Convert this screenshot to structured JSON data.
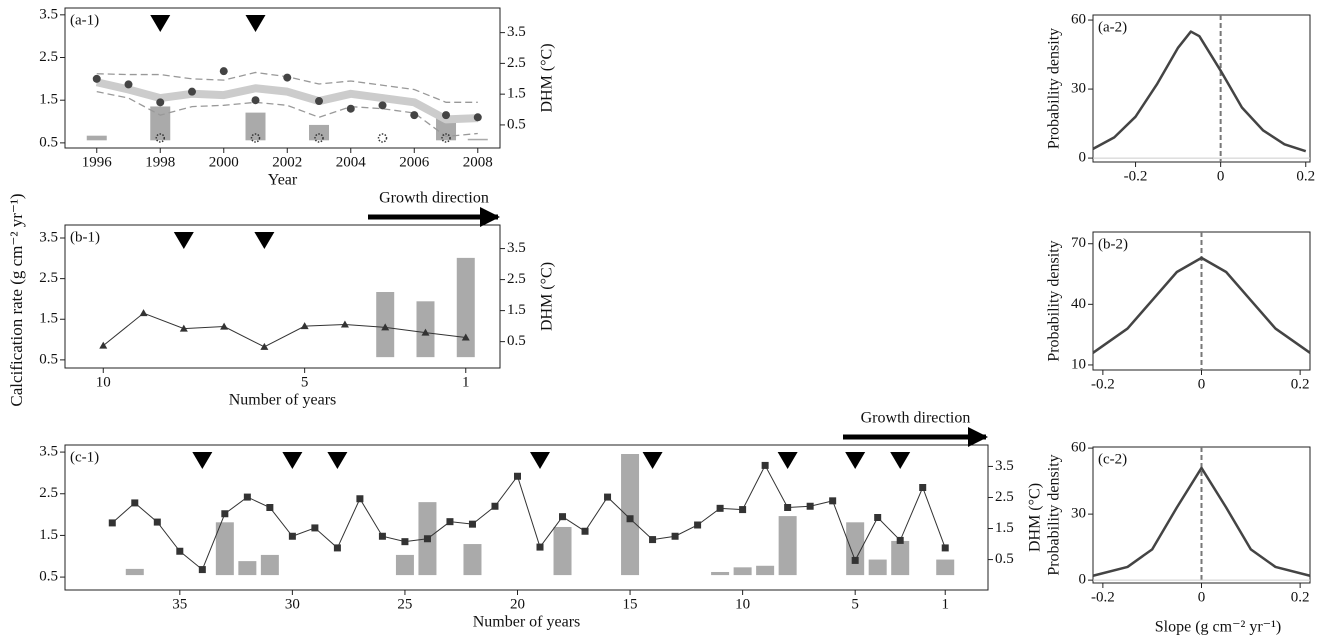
{
  "y_label": "Calcification rate (g cm⁻² yr⁻¹)",
  "x_label": "Slope (g cm⁻² yr⁻¹)",
  "chart_data": [
    {
      "type": "combo",
      "label": "(a-1)",
      "x_label": "Year",
      "y2_label": "DHM (°C)",
      "xlim": [
        1995,
        2008.7
      ],
      "xticks": [
        1996,
        1998,
        2000,
        2002,
        2004,
        2006,
        2008
      ],
      "ylim": [
        0.38,
        3.66
      ],
      "yticks": [
        0.5,
        1.5,
        2.5,
        3.5
      ],
      "y2lim": [
        -0.25,
        4.3
      ],
      "y2ticks": [
        0.5,
        1.5,
        2.5,
        3.5
      ],
      "x": [
        1996,
        1997,
        1998,
        1999,
        2000,
        2001,
        2002,
        2003,
        2004,
        2005,
        2006,
        2007,
        2008
      ],
      "series": [
        {
          "style": "thick",
          "color": "#cccccc",
          "values": [
            1.92,
            1.75,
            1.55,
            1.65,
            1.62,
            1.78,
            1.7,
            1.48,
            1.65,
            1.55,
            1.45,
            1.05,
            1.08
          ]
        },
        {
          "style": "dashed",
          "color": "#999999",
          "values": [
            2.12,
            2.1,
            2.1,
            2.0,
            1.97,
            2.15,
            2.05,
            1.88,
            1.95,
            1.85,
            1.75,
            1.45,
            1.45
          ]
        },
        {
          "style": "dashed",
          "color": "#999999",
          "values": [
            1.7,
            1.55,
            1.15,
            1.35,
            1.38,
            1.45,
            1.38,
            1.1,
            1.35,
            1.3,
            1.2,
            0.65,
            0.72
          ]
        },
        {
          "style": "dots",
          "color": "#444444",
          "values": [
            2.0,
            1.87,
            1.45,
            1.7,
            2.18,
            1.5,
            2.03,
            1.48,
            1.3,
            1.38,
            1.15,
            1.15,
            1.1
          ]
        }
      ],
      "bars": {
        "axis": "y2",
        "color": "#aaaaaa",
        "x": [
          1996,
          1998,
          2001,
          2003,
          2007,
          2008
        ],
        "values": [
          0.15,
          1.1,
          0.9,
          0.5,
          0.75,
          0.05
        ]
      },
      "triangle_x": [
        1998,
        2001
      ],
      "star_x": [
        1998,
        2001,
        2003,
        2005,
        2007
      ]
    },
    {
      "type": "combo",
      "label": "(b-1)",
      "x_label": "Number of years",
      "y2_label": "DHM (°C)",
      "annotation": "Growth direction",
      "xlim": [
        10.95,
        0.15
      ],
      "xticks": [
        10,
        5,
        1
      ],
      "ylim": [
        0.3,
        3.82
      ],
      "yticks": [
        0.5,
        1.5,
        2.5,
        3.5
      ],
      "y2lim": [
        -0.35,
        4.26
      ],
      "y2ticks": [
        0.5,
        1.5,
        2.5,
        3.5
      ],
      "x": [
        10,
        9,
        8,
        7,
        6,
        5,
        4,
        3,
        2,
        1
      ],
      "series": [
        {
          "style": "line",
          "marker": "triangle",
          "color": "#333333",
          "values": [
            0.85,
            1.65,
            1.27,
            1.32,
            0.82,
            1.33,
            1.37,
            1.3,
            1.17,
            1.05
          ]
        }
      ],
      "bars": {
        "axis": "y2",
        "color": "#aaaaaa",
        "x": [
          3,
          2,
          1
        ],
        "values": [
          2.1,
          1.8,
          3.2
        ]
      },
      "triangle_x": [
        8,
        6
      ]
    },
    {
      "type": "combo",
      "label": "(c-1)",
      "x_label": "Number of years",
      "y2_label": "DHM (°C)",
      "annotation": "Growth direction",
      "xlim": [
        40.1,
        -0.9
      ],
      "xticks": [
        35,
        30,
        25,
        20,
        15,
        10,
        5,
        1
      ],
      "ylim": [
        0.19,
        3.67
      ],
      "yticks": [
        0.5,
        1.5,
        2.5,
        3.5
      ],
      "y2lim": [
        -0.48,
        4.19
      ],
      "y2ticks": [
        0.5,
        1.5,
        2.5,
        3.5
      ],
      "x": [
        38,
        37,
        36,
        35,
        34,
        33,
        32,
        31,
        30,
        29,
        28,
        27,
        26,
        25,
        24,
        23,
        22,
        21,
        20,
        19,
        18,
        17,
        16,
        15,
        14,
        13,
        12,
        11,
        10,
        9,
        8,
        7,
        6,
        5,
        4,
        3,
        2,
        1
      ],
      "series": [
        {
          "style": "line",
          "marker": "square",
          "color": "#333333",
          "values": [
            1.8,
            2.28,
            1.82,
            1.12,
            0.68,
            2.02,
            2.42,
            2.17,
            1.48,
            1.68,
            1.2,
            2.38,
            1.48,
            1.35,
            1.42,
            1.83,
            1.77,
            2.2,
            2.92,
            1.22,
            1.95,
            1.6,
            2.42,
            1.9,
            1.4,
            1.48,
            1.75,
            2.15,
            2.12,
            3.18,
            2.17,
            2.2,
            2.33,
            0.9,
            1.93,
            1.38,
            2.65,
            1.2
          ]
        }
      ],
      "bars": {
        "axis": "y2",
        "color": "#aaaaaa",
        "x": [
          37,
          33,
          32,
          31,
          25,
          24,
          22,
          18,
          15,
          11,
          10,
          9,
          8,
          5,
          4,
          3,
          1
        ],
        "values": [
          0.2,
          1.7,
          0.45,
          0.65,
          0.65,
          2.35,
          1.0,
          1.55,
          3.9,
          0.1,
          0.25,
          0.3,
          1.9,
          1.7,
          0.5,
          1.1,
          0.5
        ]
      },
      "triangle_x": [
        34,
        30,
        28,
        19,
        14,
        8,
        5,
        3
      ]
    },
    {
      "type": "line",
      "label": "(a-2)",
      "y_label": "Probability density",
      "color": "#444444",
      "xlim": [
        -0.3,
        0.21
      ],
      "xticks": [
        -0.2,
        0,
        0.2
      ],
      "ylim": [
        -1.7,
        62.2
      ],
      "yticks": [
        0,
        30,
        60
      ],
      "ref_x": 0,
      "x": [
        -0.3,
        -0.25,
        -0.2,
        -0.15,
        -0.1,
        -0.07,
        -0.05,
        0,
        0.05,
        0.1,
        0.15,
        0.2
      ],
      "values": [
        4,
        9,
        18,
        32,
        48,
        55,
        53,
        38,
        22,
        12,
        6,
        3
      ]
    },
    {
      "type": "line",
      "label": "(b-2)",
      "y_label": "Probability density",
      "color": "#444444",
      "xlim": [
        -0.22,
        0.22
      ],
      "xticks": [
        -0.2,
        0,
        0.2
      ],
      "ylim": [
        7.5,
        75.8
      ],
      "yticks": [
        10,
        40,
        70
      ],
      "ref_x": 0,
      "x": [
        -0.22,
        -0.15,
        -0.1,
        -0.05,
        0,
        0.05,
        0.1,
        0.15,
        0.22
      ],
      "values": [
        16,
        28,
        42,
        56,
        63,
        56,
        42,
        28,
        16
      ]
    },
    {
      "type": "line",
      "label": "(c-2)",
      "y_label": "Probability density",
      "color": "#444444",
      "xlim": [
        -0.22,
        0.22
      ],
      "xticks": [
        -0.2,
        0,
        0.2
      ],
      "ylim": [
        -1.3,
        60.5
      ],
      "yticks": [
        0,
        30,
        60
      ],
      "ref_x": 0,
      "x": [
        -0.22,
        -0.15,
        -0.1,
        -0.05,
        0,
        0.05,
        0.1,
        0.15,
        0.22
      ],
      "values": [
        2,
        6,
        14,
        33,
        51,
        33,
        14,
        6,
        2
      ]
    }
  ]
}
